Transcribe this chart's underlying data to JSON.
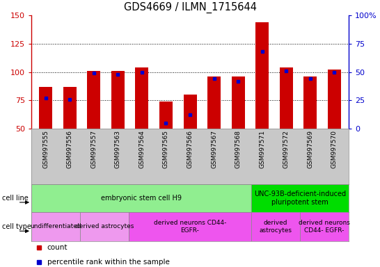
{
  "title": "GDS4669 / ILMN_1715644",
  "samples": [
    "GSM997555",
    "GSM997556",
    "GSM997557",
    "GSM997563",
    "GSM997564",
    "GSM997565",
    "GSM997566",
    "GSM997567",
    "GSM997568",
    "GSM997571",
    "GSM997572",
    "GSM997569",
    "GSM997570"
  ],
  "count_values": [
    87,
    87,
    101,
    101,
    104,
    74,
    80,
    96,
    96,
    144,
    104,
    96,
    102
  ],
  "percentile_values": [
    27,
    26,
    49,
    48,
    50,
    5,
    12,
    44,
    42,
    68,
    51,
    44,
    50
  ],
  "ylim_left": [
    50,
    150
  ],
  "ylim_right": [
    0,
    100
  ],
  "yticks_left": [
    50,
    75,
    100,
    125,
    150
  ],
  "yticks_right": [
    0,
    25,
    50,
    75,
    100
  ],
  "cell_line_groups": [
    {
      "label": "embryonic stem cell H9",
      "start": 0,
      "end": 9,
      "color": "#90EE90"
    },
    {
      "label": "UNC-93B-deficient-induced\npluripotent stem",
      "start": 9,
      "end": 13,
      "color": "#00DD00"
    }
  ],
  "cell_type_groups": [
    {
      "label": "undifferentiated",
      "start": 0,
      "end": 2,
      "color": "#EE99EE"
    },
    {
      "label": "derived astrocytes",
      "start": 2,
      "end": 4,
      "color": "#EE99EE"
    },
    {
      "label": "derived neurons CD44-\nEGFR-",
      "start": 4,
      "end": 9,
      "color": "#EE55EE"
    },
    {
      "label": "derived\nastrocytes",
      "start": 9,
      "end": 11,
      "color": "#EE55EE"
    },
    {
      "label": "derived neurons\nCD44- EGFR-",
      "start": 11,
      "end": 13,
      "color": "#EE55EE"
    }
  ],
  "bar_color": "#CC0000",
  "percentile_color": "#0000CC",
  "axis_color_left": "#CC0000",
  "axis_color_right": "#0000CC",
  "tick_label_area_color": "#C8C8C8",
  "cell_line_border_color": "#AAAAAA",
  "cell_type_border_color": "#AAAAAA"
}
